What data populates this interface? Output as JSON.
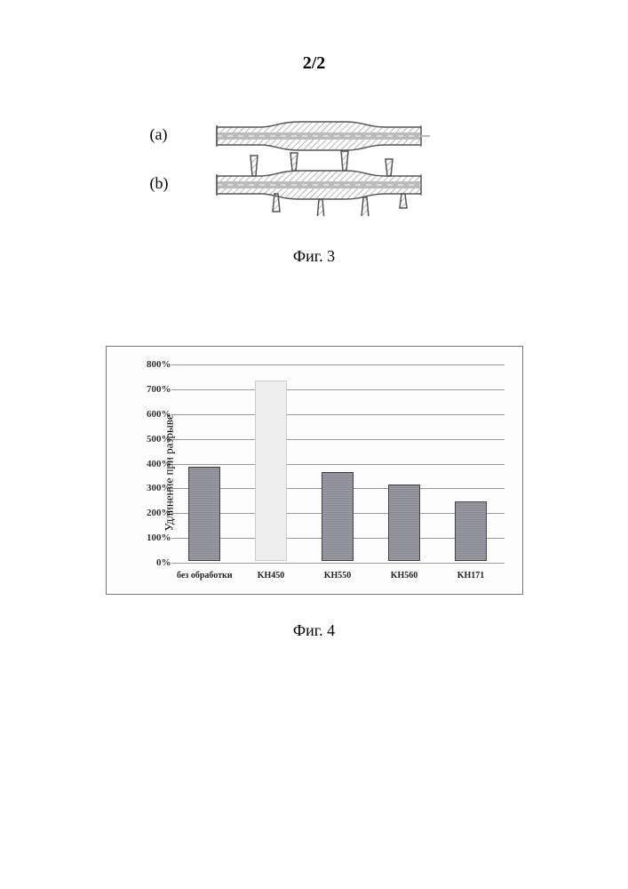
{
  "page_number": "2/2",
  "figure3": {
    "label_a": "(a)",
    "label_b": "(b)",
    "caption": "Фиг. 3",
    "stroke": "#555555",
    "hatch": "#888888",
    "channel": "#bbbbbb"
  },
  "figure4": {
    "caption": "Фиг. 4",
    "chart": {
      "type": "bar",
      "ylabel": "Удлинение при разрыве",
      "ylim_max_pct": 800,
      "ytick_step_pct": 100,
      "yticks": [
        "0%",
        "100%",
        "200%",
        "300%",
        "400%",
        "500%",
        "600%",
        "700%",
        "800%"
      ],
      "grid_color": "#999999",
      "frame_color": "#777777",
      "background": "#fdfdfd",
      "bar_solid_color": "#8f8f9a",
      "bar_faint_color": "#ededed",
      "categories": [
        "без обработки",
        "KH450",
        "KH550",
        "KH560",
        "KH171"
      ],
      "values_pct": [
        380,
        730,
        360,
        310,
        240
      ],
      "bar_styles": [
        "solid",
        "faint",
        "solid",
        "solid",
        "solid"
      ]
    }
  }
}
